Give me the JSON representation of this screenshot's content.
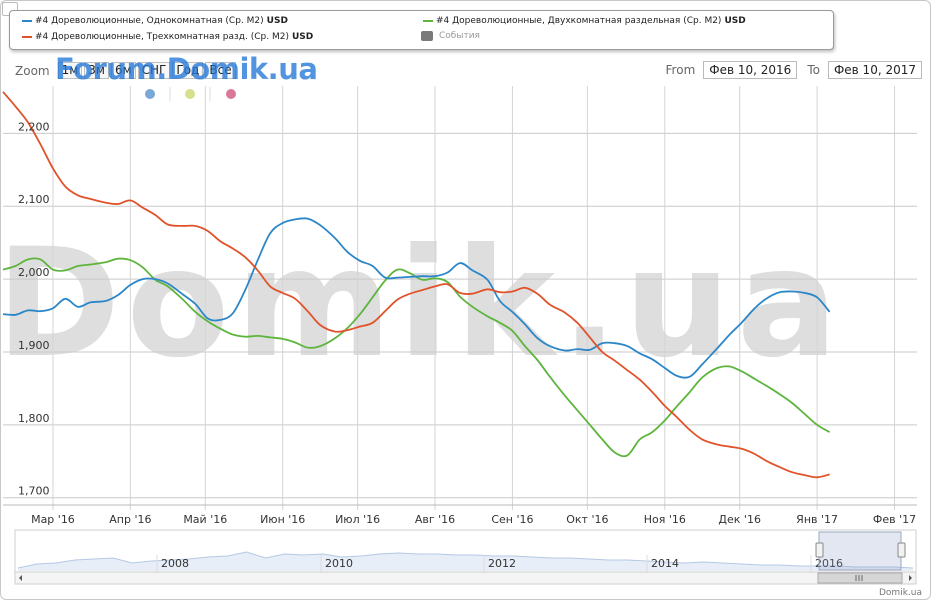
{
  "legend": {
    "items": [
      {
        "label": "#4 Дореволюционные, Однокомнатная (Ср. М2)",
        "unit": "USD",
        "color": "#2b86c8"
      },
      {
        "label": "#4 Дореволюционные, Трехкомнатная разд. (Ср. М2)",
        "unit": "USD",
        "color": "#e0532a"
      },
      {
        "label": "#4 Дореволюционные, Двухкомнатная раздельная (Ср. М2)",
        "unit": "USD",
        "color": "#5db53d"
      }
    ],
    "events_label": "События",
    "events_color": "#7a7a7a"
  },
  "toolbar": {
    "zoom_label": "Zoom",
    "zoom_buttons": [
      "1м",
      "3м",
      "6м",
      "СНГ",
      "Год",
      "Все"
    ],
    "from_label": "From",
    "from_value": "Фев 10, 2016",
    "to_label": "To",
    "to_value": "Фев 10, 2017"
  },
  "watermark": {
    "top": "Forum.Domik.ua",
    "center": "Domik.ua"
  },
  "credit": "Domik.ua",
  "dot_colors": [
    "#79a7d6",
    "#d6df8a",
    "#d9789a"
  ],
  "navigator": {
    "years": [
      "2008",
      "2010",
      "2012",
      "2014",
      "2016"
    ]
  },
  "chart_data": {
    "type": "line",
    "ylim": [
      1690,
      2265
    ],
    "y_ticks": [
      1700,
      1800,
      1900,
      2000,
      2100,
      2200
    ],
    "y_tick_labels": [
      "1,700",
      "1,800",
      "1,900",
      "2,000",
      "2,100",
      "2,200"
    ],
    "x_range": [
      "2016-02-10",
      "2017-02-10"
    ],
    "x_ticks": [
      {
        "date": "2016-03-01",
        "label": "Мар '16"
      },
      {
        "date": "2016-04-01",
        "label": "Апр '16"
      },
      {
        "date": "2016-05-01",
        "label": "Май '16"
      },
      {
        "date": "2016-06-01",
        "label": "Июн '16"
      },
      {
        "date": "2016-07-01",
        "label": "Июл '16"
      },
      {
        "date": "2016-08-01",
        "label": "Авг '16"
      },
      {
        "date": "2016-09-01",
        "label": "Сен '16"
      },
      {
        "date": "2016-10-01",
        "label": "Окт '16"
      },
      {
        "date": "2016-11-01",
        "label": "Ноя '16"
      },
      {
        "date": "2016-12-01",
        "label": "Дек '16"
      },
      {
        "date": "2017-01-01",
        "label": "Янв '17"
      },
      {
        "date": "2017-02-01",
        "label": "Фев '17"
      }
    ],
    "series": [
      {
        "name": "#4 Дореволюционные, Однокомнатная (Ср. М2) USD",
        "color": "#2b86c8",
        "points": [
          [
            "2016-02-10",
            1952
          ],
          [
            "2016-02-15",
            1951
          ],
          [
            "2016-02-20",
            1957
          ],
          [
            "2016-02-25",
            1956
          ],
          [
            "2016-03-01",
            1960
          ],
          [
            "2016-03-06",
            1973
          ],
          [
            "2016-03-11",
            1962
          ],
          [
            "2016-03-16",
            1968
          ],
          [
            "2016-03-22",
            1970
          ],
          [
            "2016-03-27",
            1978
          ],
          [
            "2016-04-01",
            1992
          ],
          [
            "2016-04-06",
            2000
          ],
          [
            "2016-04-11",
            2000
          ],
          [
            "2016-04-16",
            1994
          ],
          [
            "2016-04-22",
            1979
          ],
          [
            "2016-04-27",
            1966
          ],
          [
            "2016-05-02",
            1946
          ],
          [
            "2016-05-07",
            1944
          ],
          [
            "2016-05-12",
            1953
          ],
          [
            "2016-05-17",
            1985
          ],
          [
            "2016-05-22",
            2026
          ],
          [
            "2016-05-27",
            2063
          ],
          [
            "2016-06-01",
            2077
          ],
          [
            "2016-06-06",
            2082
          ],
          [
            "2016-06-11",
            2083
          ],
          [
            "2016-06-16",
            2074
          ],
          [
            "2016-06-22",
            2056
          ],
          [
            "2016-06-27",
            2037
          ],
          [
            "2016-07-02",
            2025
          ],
          [
            "2016-07-07",
            2018
          ],
          [
            "2016-07-12",
            2002
          ],
          [
            "2016-07-17",
            2002
          ],
          [
            "2016-07-22",
            2003
          ],
          [
            "2016-07-27",
            2004
          ],
          [
            "2016-08-01",
            2004
          ],
          [
            "2016-08-06",
            2009
          ],
          [
            "2016-08-11",
            2022
          ],
          [
            "2016-08-16",
            2012
          ],
          [
            "2016-08-22",
            1999
          ],
          [
            "2016-08-27",
            1970
          ],
          [
            "2016-09-01",
            1955
          ],
          [
            "2016-09-06",
            1938
          ],
          [
            "2016-09-11",
            1919
          ],
          [
            "2016-09-16",
            1908
          ],
          [
            "2016-09-22",
            1902
          ],
          [
            "2016-09-27",
            1904
          ],
          [
            "2016-10-02",
            1903
          ],
          [
            "2016-10-07",
            1912
          ],
          [
            "2016-10-12",
            1912
          ],
          [
            "2016-10-17",
            1908
          ],
          [
            "2016-10-22",
            1898
          ],
          [
            "2016-10-27",
            1890
          ],
          [
            "2016-11-01",
            1878
          ],
          [
            "2016-11-06",
            1867
          ],
          [
            "2016-11-11",
            1866
          ],
          [
            "2016-11-16",
            1883
          ],
          [
            "2016-11-22",
            1905
          ],
          [
            "2016-11-27",
            1924
          ],
          [
            "2016-12-02",
            1941
          ],
          [
            "2016-12-07",
            1960
          ],
          [
            "2016-12-12",
            1974
          ],
          [
            "2016-12-17",
            1982
          ],
          [
            "2016-12-22",
            1983
          ],
          [
            "2016-12-27",
            1981
          ],
          [
            "2017-01-01",
            1975
          ],
          [
            "2017-01-06",
            1955
          ]
        ]
      },
      {
        "name": "#4 Дореволюционные, Трехкомнатная разд. (Ср. М2) USD",
        "color": "#e0532a",
        "points": [
          [
            "2016-02-10",
            2257
          ],
          [
            "2016-02-15",
            2237
          ],
          [
            "2016-02-20",
            2215
          ],
          [
            "2016-02-25",
            2185
          ],
          [
            "2016-03-01",
            2152
          ],
          [
            "2016-03-06",
            2127
          ],
          [
            "2016-03-11",
            2115
          ],
          [
            "2016-03-16",
            2110
          ],
          [
            "2016-03-22",
            2105
          ],
          [
            "2016-03-27",
            2103
          ],
          [
            "2016-04-01",
            2108
          ],
          [
            "2016-04-06",
            2098
          ],
          [
            "2016-04-11",
            2088
          ],
          [
            "2016-04-16",
            2075
          ],
          [
            "2016-04-22",
            2073
          ],
          [
            "2016-04-27",
            2073
          ],
          [
            "2016-05-02",
            2066
          ],
          [
            "2016-05-07",
            2052
          ],
          [
            "2016-05-12",
            2042
          ],
          [
            "2016-05-17",
            2030
          ],
          [
            "2016-05-22",
            2012
          ],
          [
            "2016-05-27",
            1990
          ],
          [
            "2016-06-01",
            1981
          ],
          [
            "2016-06-06",
            1973
          ],
          [
            "2016-06-11",
            1956
          ],
          [
            "2016-06-16",
            1937
          ],
          [
            "2016-06-22",
            1928
          ],
          [
            "2016-06-27",
            1930
          ],
          [
            "2016-07-02",
            1935
          ],
          [
            "2016-07-07",
            1940
          ],
          [
            "2016-07-12",
            1956
          ],
          [
            "2016-07-17",
            1972
          ],
          [
            "2016-07-22",
            1980
          ],
          [
            "2016-07-27",
            1985
          ],
          [
            "2016-08-01",
            1990
          ],
          [
            "2016-08-06",
            1993
          ],
          [
            "2016-08-11",
            1981
          ],
          [
            "2016-08-16",
            1980
          ],
          [
            "2016-08-22",
            1986
          ],
          [
            "2016-08-27",
            1982
          ],
          [
            "2016-09-01",
            1983
          ],
          [
            "2016-09-06",
            1988
          ],
          [
            "2016-09-11",
            1980
          ],
          [
            "2016-09-16",
            1965
          ],
          [
            "2016-09-22",
            1954
          ],
          [
            "2016-09-27",
            1940
          ],
          [
            "2016-10-02",
            1920
          ],
          [
            "2016-10-07",
            1900
          ],
          [
            "2016-10-12",
            1888
          ],
          [
            "2016-10-17",
            1875
          ],
          [
            "2016-10-22",
            1862
          ],
          [
            "2016-10-27",
            1845
          ],
          [
            "2016-11-01",
            1826
          ],
          [
            "2016-11-06",
            1810
          ],
          [
            "2016-11-11",
            1793
          ],
          [
            "2016-11-16",
            1780
          ],
          [
            "2016-11-22",
            1773
          ],
          [
            "2016-11-27",
            1770
          ],
          [
            "2016-12-02",
            1767
          ],
          [
            "2016-12-07",
            1760
          ],
          [
            "2016-12-12",
            1750
          ],
          [
            "2016-12-17",
            1742
          ],
          [
            "2016-12-22",
            1735
          ],
          [
            "2016-12-27",
            1731
          ],
          [
            "2017-01-01",
            1728
          ],
          [
            "2017-01-06",
            1732
          ]
        ]
      },
      {
        "name": "#4 Дореволюционные, Двухкомнатная раздельная (Ср. М2) USD",
        "color": "#5db53d",
        "points": [
          [
            "2016-02-10",
            2013
          ],
          [
            "2016-02-15",
            2018
          ],
          [
            "2016-02-20",
            2027
          ],
          [
            "2016-02-25",
            2027
          ],
          [
            "2016-03-01",
            2013
          ],
          [
            "2016-03-06",
            2012
          ],
          [
            "2016-03-11",
            2018
          ],
          [
            "2016-03-16",
            2020
          ],
          [
            "2016-03-22",
            2023
          ],
          [
            "2016-03-27",
            2028
          ],
          [
            "2016-04-01",
            2026
          ],
          [
            "2016-04-06",
            2016
          ],
          [
            "2016-04-11",
            1999
          ],
          [
            "2016-04-16",
            1990
          ],
          [
            "2016-04-22",
            1972
          ],
          [
            "2016-04-27",
            1955
          ],
          [
            "2016-05-02",
            1942
          ],
          [
            "2016-05-07",
            1932
          ],
          [
            "2016-05-12",
            1924
          ],
          [
            "2016-05-17",
            1921
          ],
          [
            "2016-05-22",
            1922
          ],
          [
            "2016-05-27",
            1920
          ],
          [
            "2016-06-01",
            1918
          ],
          [
            "2016-06-06",
            1913
          ],
          [
            "2016-06-11",
            1906
          ],
          [
            "2016-06-16",
            1908
          ],
          [
            "2016-06-22",
            1919
          ],
          [
            "2016-06-27",
            1933
          ],
          [
            "2016-07-02",
            1952
          ],
          [
            "2016-07-07",
            1975
          ],
          [
            "2016-07-12",
            1998
          ],
          [
            "2016-07-17",
            2013
          ],
          [
            "2016-07-22",
            2008
          ],
          [
            "2016-07-27",
            1999
          ],
          [
            "2016-08-01",
            2001
          ],
          [
            "2016-08-06",
            1996
          ],
          [
            "2016-08-11",
            1976
          ],
          [
            "2016-08-16",
            1962
          ],
          [
            "2016-08-22",
            1949
          ],
          [
            "2016-08-27",
            1940
          ],
          [
            "2016-09-01",
            1929
          ],
          [
            "2016-09-06",
            1908
          ],
          [
            "2016-09-11",
            1889
          ],
          [
            "2016-09-16",
            1866
          ],
          [
            "2016-09-22",
            1840
          ],
          [
            "2016-09-27",
            1820
          ],
          [
            "2016-10-02",
            1800
          ],
          [
            "2016-10-07",
            1780
          ],
          [
            "2016-10-12",
            1762
          ],
          [
            "2016-10-17",
            1758
          ],
          [
            "2016-10-22",
            1780
          ],
          [
            "2016-10-27",
            1790
          ],
          [
            "2016-11-01",
            1806
          ],
          [
            "2016-11-06",
            1826
          ],
          [
            "2016-11-11",
            1845
          ],
          [
            "2016-11-16",
            1865
          ],
          [
            "2016-11-22",
            1878
          ],
          [
            "2016-11-27",
            1880
          ],
          [
            "2016-12-02",
            1873
          ],
          [
            "2016-12-07",
            1863
          ],
          [
            "2016-12-12",
            1853
          ],
          [
            "2016-12-17",
            1842
          ],
          [
            "2016-12-22",
            1830
          ],
          [
            "2016-12-27",
            1815
          ],
          [
            "2017-01-01",
            1800
          ],
          [
            "2017-01-06",
            1790
          ]
        ]
      }
    ]
  }
}
